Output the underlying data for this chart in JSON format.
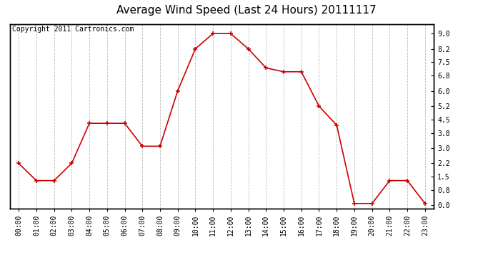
{
  "title": "Average Wind Speed (Last 24 Hours) 20111117",
  "copyright": "Copyright 2011 Cartronics.com",
  "x_labels": [
    "00:00",
    "01:00",
    "02:00",
    "03:00",
    "04:00",
    "05:00",
    "06:00",
    "07:00",
    "08:00",
    "09:00",
    "10:00",
    "11:00",
    "12:00",
    "13:00",
    "14:00",
    "15:00",
    "16:00",
    "17:00",
    "18:00",
    "19:00",
    "20:00",
    "21:00",
    "22:00",
    "23:00"
  ],
  "y_values": [
    2.2,
    1.3,
    1.3,
    2.2,
    4.3,
    4.3,
    4.3,
    3.1,
    3.1,
    6.0,
    8.2,
    9.0,
    9.0,
    8.2,
    7.2,
    7.0,
    7.0,
    5.2,
    4.2,
    0.1,
    0.1,
    1.3,
    1.3,
    0.1
  ],
  "y_right_ticks": [
    0.0,
    0.8,
    1.5,
    2.2,
    3.0,
    3.8,
    4.5,
    5.2,
    6.0,
    6.8,
    7.5,
    8.2,
    9.0
  ],
  "y_right_labels": [
    "0.0",
    "0.8",
    "1.5",
    "2.2",
    "3.0",
    "3.8",
    "4.5",
    "5.2",
    "6.0",
    "6.8",
    "7.5",
    "8.2",
    "9.0"
  ],
  "line_color": "#cc0000",
  "marker": "+",
  "background_color": "#ffffff",
  "plot_bg_color": "#ffffff",
  "grid_color": "#bbbbbb",
  "title_fontsize": 11,
  "copyright_fontsize": 7,
  "tick_fontsize": 7
}
